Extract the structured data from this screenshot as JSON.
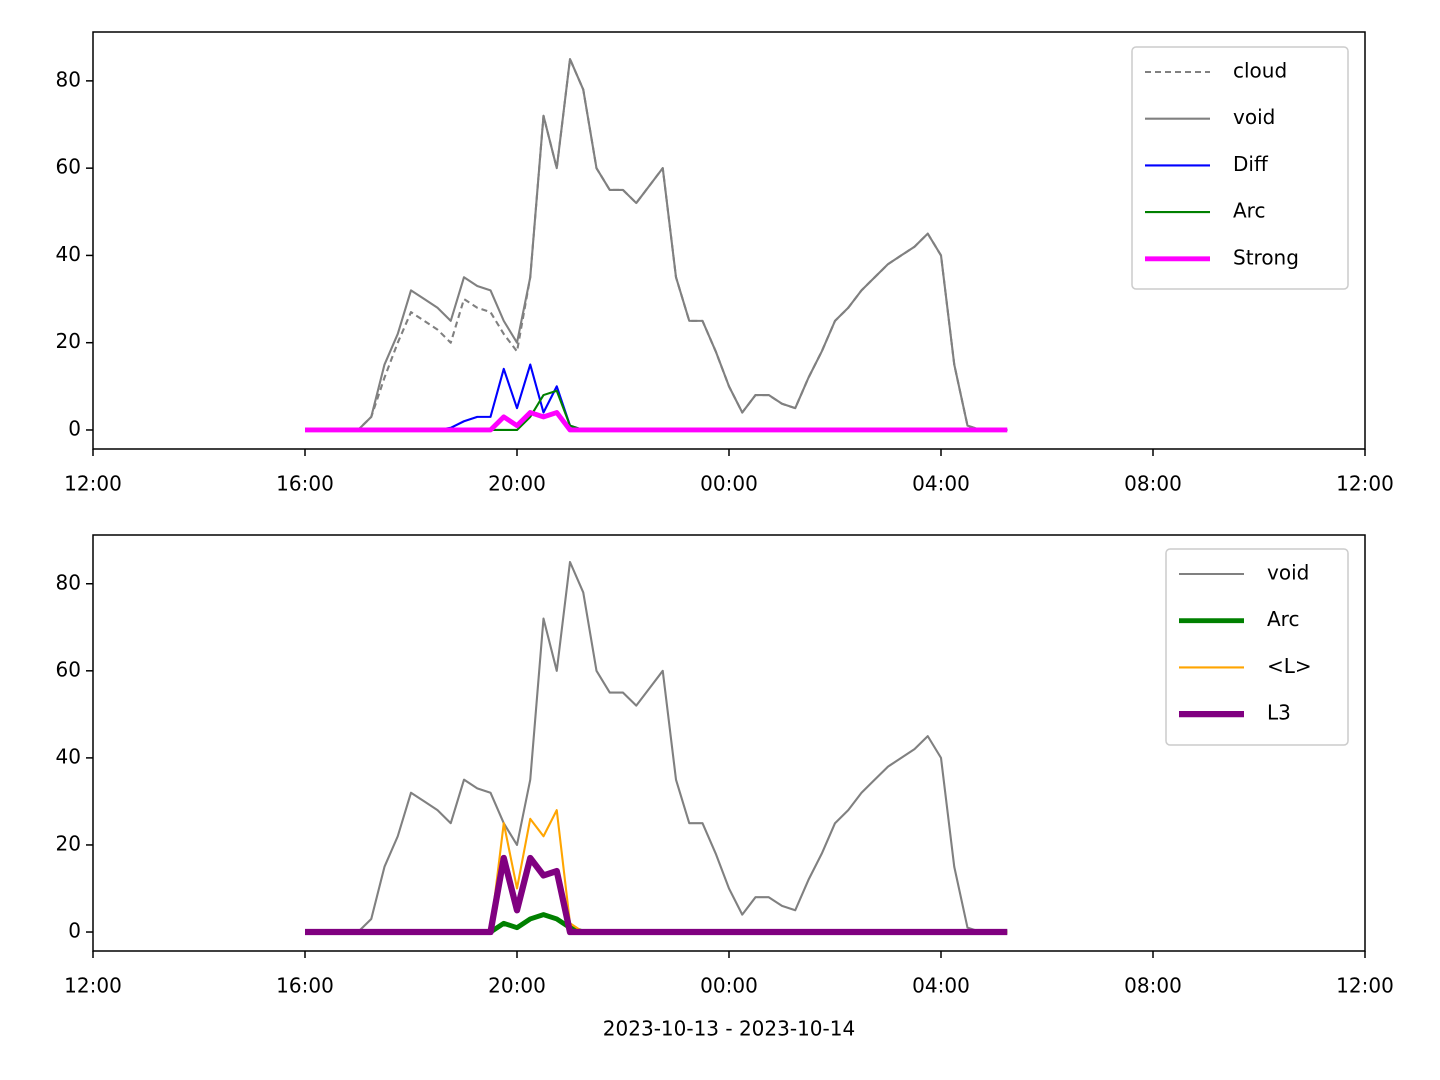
{
  "chart_data": [
    {
      "type": "line",
      "x": [
        16,
        16.25,
        16.5,
        16.75,
        17,
        17.25,
        17.5,
        17.75,
        18,
        18.25,
        18.5,
        18.75,
        19,
        19.25,
        19.5,
        19.75,
        20,
        20.25,
        20.5,
        20.75,
        21,
        21.25,
        21.5,
        21.75,
        22,
        22.25,
        22.5,
        22.75,
        23,
        23.25,
        23.5,
        23.75,
        24,
        24.25,
        24.5,
        24.75,
        25,
        25.25,
        25.5,
        25.75,
        26,
        26.25,
        26.5,
        26.75,
        27,
        27.25,
        27.5,
        27.75,
        28,
        28.25,
        28.5,
        28.75,
        29,
        29.25
      ],
      "xlim": [
        12,
        36
      ],
      "xticks": [
        {
          "value": 12,
          "label": "12:00"
        },
        {
          "value": 16,
          "label": "16:00"
        },
        {
          "value": 20,
          "label": "20:00"
        },
        {
          "value": 24,
          "label": "00:00"
        },
        {
          "value": 28,
          "label": "04:00"
        },
        {
          "value": 32,
          "label": "08:00"
        },
        {
          "value": 36,
          "label": "12:00"
        }
      ],
      "ylim": [
        -4.36,
        91.2
      ],
      "yticks": [
        0,
        20,
        40,
        60,
        80
      ],
      "legend": "upper right",
      "series": [
        {
          "name": "cloud",
          "color": "#808080",
          "linestyle": "dashed",
          "linewidth": 1.5,
          "values": [
            0,
            0,
            0,
            0,
            0,
            3,
            12,
            20,
            27,
            25,
            23,
            20,
            30,
            28,
            27,
            22,
            18,
            35,
            72,
            60,
            85,
            78,
            60,
            55,
            55,
            52,
            56,
            60,
            35,
            25,
            25,
            18,
            10,
            4,
            8,
            8,
            6,
            5,
            12,
            18,
            25,
            28,
            32,
            35,
            38,
            40,
            42,
            45,
            40,
            15,
            1,
            0,
            0,
            0
          ]
        },
        {
          "name": "void",
          "color": "#808080",
          "linestyle": "solid",
          "linewidth": 1.5,
          "values": [
            0,
            0,
            0,
            0,
            0,
            3,
            15,
            22,
            32,
            30,
            28,
            25,
            35,
            33,
            32,
            25,
            20,
            35,
            72,
            60,
            85,
            78,
            60,
            55,
            55,
            52,
            56,
            60,
            35,
            25,
            25,
            18,
            10,
            4,
            8,
            8,
            6,
            5,
            12,
            18,
            25,
            28,
            32,
            35,
            38,
            40,
            42,
            45,
            40,
            15,
            1,
            0,
            0,
            0
          ]
        },
        {
          "name": "Diff",
          "color": "#0000ff",
          "linestyle": "solid",
          "linewidth": 1.5,
          "values": [
            0,
            0,
            0,
            0,
            0,
            0,
            0,
            0,
            0,
            0,
            0,
            0.5,
            2,
            3,
            3,
            14,
            5,
            15,
            4,
            10,
            1,
            0,
            0,
            0,
            0,
            0,
            0,
            0,
            0,
            0,
            0,
            0,
            0,
            0,
            0,
            0,
            0,
            0,
            0,
            0,
            0,
            0,
            0,
            0,
            0,
            0,
            0,
            0,
            0,
            0,
            0,
            0,
            0,
            0
          ]
        },
        {
          "name": "Arc",
          "color": "#008000",
          "linestyle": "solid",
          "linewidth": 1.5,
          "values": [
            0,
            0,
            0,
            0,
            0,
            0,
            0,
            0,
            0,
            0,
            0,
            0,
            0,
            0,
            0,
            0,
            0,
            3,
            8,
            9,
            1,
            0,
            0,
            0,
            0,
            0,
            0,
            0,
            0,
            0,
            0,
            0,
            0,
            0,
            0,
            0,
            0,
            0,
            0,
            0,
            0,
            0,
            0,
            0,
            0,
            0,
            0,
            0,
            0,
            0,
            0,
            0,
            0,
            0
          ]
        },
        {
          "name": "Strong",
          "color": "#ff00ff",
          "linestyle": "solid",
          "linewidth": 3.5,
          "values": [
            0,
            0,
            0,
            0,
            0,
            0,
            0,
            0,
            0,
            0,
            0,
            0,
            0,
            0,
            0,
            3,
            1,
            4,
            3,
            4,
            0,
            0,
            0,
            0,
            0,
            0,
            0,
            0,
            0,
            0,
            0,
            0,
            0,
            0,
            0,
            0,
            0,
            0,
            0,
            0,
            0,
            0,
            0,
            0,
            0,
            0,
            0,
            0,
            0,
            0,
            0,
            0,
            0,
            0
          ]
        }
      ]
    },
    {
      "type": "line",
      "xlabel": "2023-10-13 - 2023-10-14",
      "x": [
        16,
        16.25,
        16.5,
        16.75,
        17,
        17.25,
        17.5,
        17.75,
        18,
        18.25,
        18.5,
        18.75,
        19,
        19.25,
        19.5,
        19.75,
        20,
        20.25,
        20.5,
        20.75,
        21,
        21.25,
        21.5,
        21.75,
        22,
        22.25,
        22.5,
        22.75,
        23,
        23.25,
        23.5,
        23.75,
        24,
        24.25,
        24.5,
        24.75,
        25,
        25.25,
        25.5,
        25.75,
        26,
        26.25,
        26.5,
        26.75,
        27,
        27.25,
        27.5,
        27.75,
        28,
        28.25,
        28.5,
        28.75,
        29,
        29.25
      ],
      "xlim": [
        12,
        36
      ],
      "xticks": [
        {
          "value": 12,
          "label": "12:00"
        },
        {
          "value": 16,
          "label": "16:00"
        },
        {
          "value": 20,
          "label": "20:00"
        },
        {
          "value": 24,
          "label": "00:00"
        },
        {
          "value": 28,
          "label": "04:00"
        },
        {
          "value": 32,
          "label": "08:00"
        },
        {
          "value": 36,
          "label": "12:00"
        }
      ],
      "ylim": [
        -4.36,
        91.2
      ],
      "yticks": [
        0,
        20,
        40,
        60,
        80
      ],
      "legend": "upper right",
      "series": [
        {
          "name": "void",
          "color": "#808080",
          "linestyle": "solid",
          "linewidth": 1.5,
          "values": [
            0,
            0,
            0,
            0,
            0,
            3,
            15,
            22,
            32,
            30,
            28,
            25,
            35,
            33,
            32,
            25,
            20,
            35,
            72,
            60,
            85,
            78,
            60,
            55,
            55,
            52,
            56,
            60,
            35,
            25,
            25,
            18,
            10,
            4,
            8,
            8,
            6,
            5,
            12,
            18,
            25,
            28,
            32,
            35,
            38,
            40,
            42,
            45,
            40,
            15,
            1,
            0,
            0,
            0
          ]
        },
        {
          "name": "Arc",
          "color": "#008000",
          "linestyle": "solid",
          "linewidth": 3.5,
          "values": [
            0,
            0,
            0,
            0,
            0,
            0,
            0,
            0,
            0,
            0,
            0,
            0,
            0,
            0,
            0,
            2,
            1,
            3,
            4,
            3,
            1,
            0,
            0,
            0,
            0,
            0,
            0,
            0,
            0,
            0,
            0,
            0,
            0,
            0,
            0,
            0,
            0,
            0,
            0,
            0,
            0,
            0,
            0,
            0,
            0,
            0,
            0,
            0,
            0,
            0,
            0,
            0,
            0,
            0
          ]
        },
        {
          "name": "<L>",
          "color": "#ffa500",
          "linestyle": "solid",
          "linewidth": 1.5,
          "values": [
            0,
            0,
            0,
            0,
            0,
            0,
            0,
            0,
            0,
            0,
            0,
            0,
            0,
            0,
            0,
            25,
            10,
            26,
            22,
            28,
            2,
            0,
            0,
            0,
            0,
            0,
            0,
            0,
            0,
            0,
            0,
            0,
            0,
            0,
            0,
            0,
            0,
            0,
            0,
            0,
            0,
            0,
            0,
            0,
            0,
            0,
            0,
            0,
            0,
            0,
            0,
            0,
            0,
            0
          ]
        },
        {
          "name": "L3",
          "color": "#800080",
          "linestyle": "solid",
          "linewidth": 4.5,
          "values": [
            0,
            0,
            0,
            0,
            0,
            0,
            0,
            0,
            0,
            0,
            0,
            0,
            0,
            0,
            0,
            17,
            5,
            17,
            13,
            14,
            0,
            0,
            0,
            0,
            0,
            0,
            0,
            0,
            0,
            0,
            0,
            0,
            0,
            0,
            0,
            0,
            0,
            0,
            0,
            0,
            0,
            0,
            0,
            0,
            0,
            0,
            0,
            0,
            0,
            0,
            0,
            0,
            0,
            0
          ]
        }
      ]
    }
  ]
}
